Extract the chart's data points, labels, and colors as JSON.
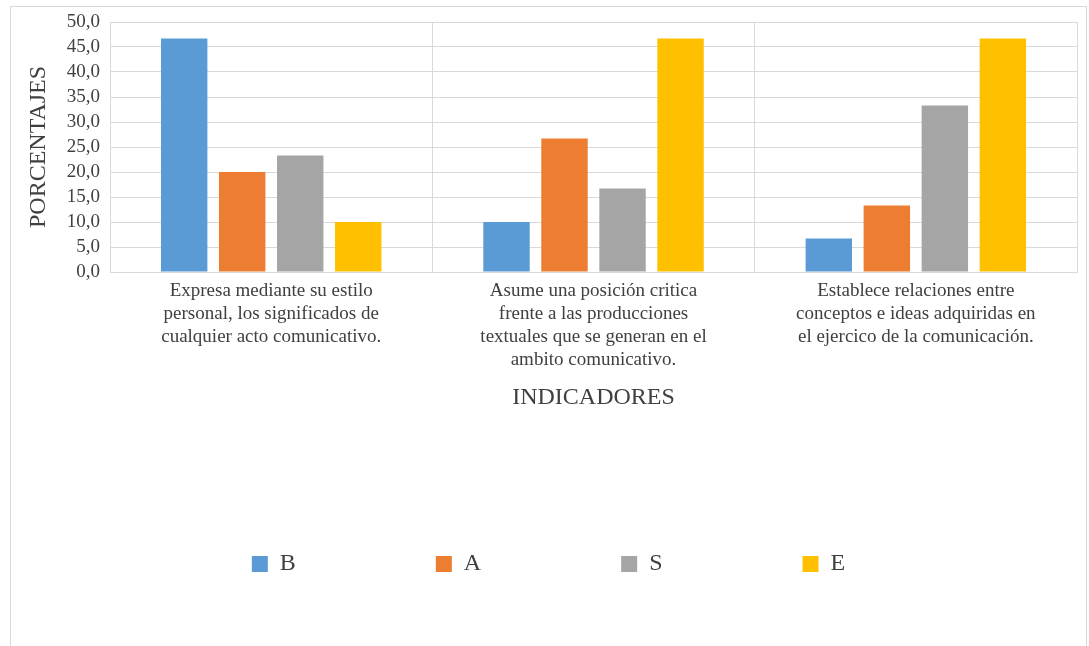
{
  "chart_data": {
    "type": "bar",
    "xlabel": "INDICADORES",
    "ylabel": "PORCENTAJES",
    "categories": [
      "Expresa mediante su estilo personal, los significados de cualquier acto comunicativo.",
      "Asume una posición critica frente a las producciones textuales que se generan en el ambito comunicativo.",
      "Establece relaciones entre conceptos e ideas adquiridas en el ejercico de la comunicación."
    ],
    "series": [
      {
        "name": "B",
        "color": "#5b9bd5",
        "values": [
          46.7,
          10.0,
          6.7
        ]
      },
      {
        "name": "A",
        "color": "#ed7d31",
        "values": [
          20.0,
          26.7,
          13.3
        ]
      },
      {
        "name": "S",
        "color": "#a5a5a5",
        "values": [
          23.3,
          16.7,
          33.3
        ]
      },
      {
        "name": "E",
        "color": "#ffc000",
        "values": [
          10.0,
          46.7,
          46.7
        ]
      }
    ],
    "ylim": [
      0,
      50
    ],
    "yticks": [
      {
        "value": 0,
        "label": "0,0"
      },
      {
        "value": 5,
        "label": "5,0"
      },
      {
        "value": 10,
        "label": "10,0"
      },
      {
        "value": 15,
        "label": "15,0"
      },
      {
        "value": 20,
        "label": "20,0"
      },
      {
        "value": 25,
        "label": "25,0"
      },
      {
        "value": 30,
        "label": "30,0"
      },
      {
        "value": 35,
        "label": "35,0"
      },
      {
        "value": 40,
        "label": "40,0"
      },
      {
        "value": 45,
        "label": "45,0"
      },
      {
        "value": 50,
        "label": "50,0"
      }
    ],
    "grid": true,
    "legend": "bottom"
  }
}
